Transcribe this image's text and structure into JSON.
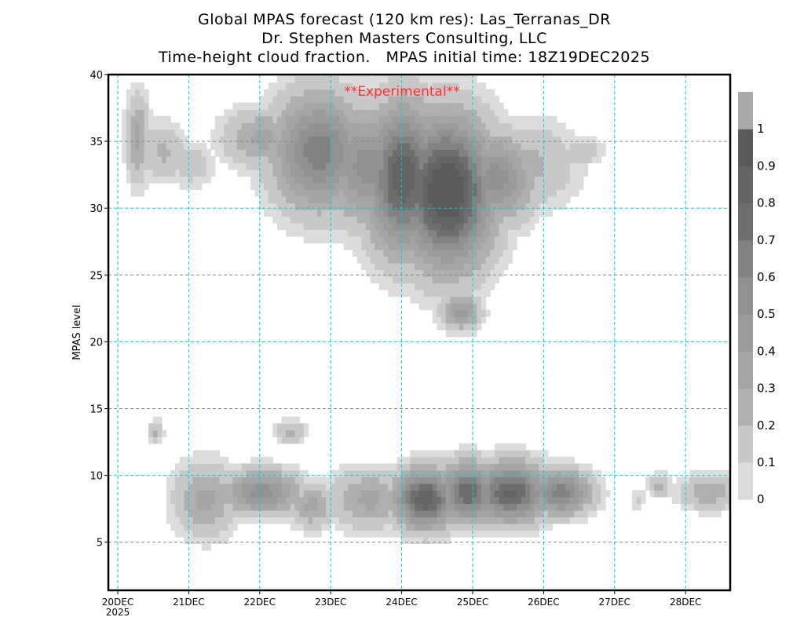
{
  "chart_data": {
    "type": "heatmap",
    "title": [
      "Global MPAS forecast (120 km res): Las_Terranas_DR",
      "Dr. Stephen Masters Consulting, LLC",
      "Time-height cloud fraction.   MPAS initial time: 18Z19DEC2025"
    ],
    "annotation": "**Experimental**",
    "ylabel": "MPAS level",
    "xlabel": "",
    "ylim": [
      1.4,
      40
    ],
    "xlim_days_from_20DEC": [
      -0.13,
      8.63
    ],
    "yticks": [
      5,
      10,
      15,
      20,
      25,
      30,
      35,
      40
    ],
    "xticks": [
      "20DEC",
      "21DEC",
      "22DEC",
      "23DEC",
      "24DEC",
      "25DEC",
      "26DEC",
      "27DEC",
      "28DEC"
    ],
    "xtick_year": "2025",
    "grid": true,
    "colorbar": {
      "levels": [
        0,
        0.1,
        0.2,
        0.3,
        0.4,
        0.5,
        0.6,
        0.7,
        0.8,
        0.9,
        1
      ],
      "labels": [
        "0",
        "0.1",
        "0.2",
        "0.3",
        "0.4",
        "0.5",
        "0.6",
        "0.7",
        "0.8",
        "0.9",
        "1"
      ],
      "colors": [
        "#dcdcdc",
        "#c8c8c8",
        "#afafaf",
        "#a5a5a5",
        "#9b9b9b",
        "#919191",
        "#828282",
        "#6e6e6e",
        "#646464",
        "#5a5a5a",
        "#aaaaaa"
      ]
    },
    "cloud_features": [
      {
        "day": 0.25,
        "level": 35,
        "dday": 0.15,
        "dlev": 3,
        "fraction": 0.3
      },
      {
        "day": 0.6,
        "level": 34,
        "dday": 0.3,
        "dlev": 2,
        "fraction": 0.2
      },
      {
        "day": 1.0,
        "level": 33,
        "dday": 0.3,
        "dlev": 1.5,
        "fraction": 0.15
      },
      {
        "day": 2.0,
        "level": 35,
        "dday": 0.5,
        "dlev": 2,
        "fraction": 0.3
      },
      {
        "day": 2.8,
        "level": 34,
        "dday": 0.6,
        "dlev": 4,
        "fraction": 0.6
      },
      {
        "day": 3.5,
        "level": 33,
        "dday": 0.6,
        "dlev": 4,
        "fraction": 0.5
      },
      {
        "day": 4.0,
        "level": 32,
        "dday": 0.5,
        "dlev": 5,
        "fraction": 0.8
      },
      {
        "day": 4.6,
        "level": 31,
        "dday": 0.6,
        "dlev": 5,
        "fraction": 0.95
      },
      {
        "day": 5.3,
        "level": 32,
        "dday": 0.5,
        "dlev": 3,
        "fraction": 0.5
      },
      {
        "day": 5.8,
        "level": 33,
        "dday": 0.6,
        "dlev": 3,
        "fraction": 0.2
      },
      {
        "day": 6.5,
        "level": 34,
        "dday": 0.3,
        "dlev": 1,
        "fraction": 0.15
      },
      {
        "day": 4.8,
        "level": 22,
        "dday": 0.25,
        "dlev": 1.2,
        "fraction": 0.4
      },
      {
        "day": 0.5,
        "level": 13,
        "dday": 0.1,
        "dlev": 0.8,
        "fraction": 0.2
      },
      {
        "day": 2.4,
        "level": 13,
        "dday": 0.2,
        "dlev": 0.8,
        "fraction": 0.2
      },
      {
        "day": 1.2,
        "level": 8,
        "dday": 0.4,
        "dlev": 2.5,
        "fraction": 0.3
      },
      {
        "day": 2.0,
        "level": 8.5,
        "dday": 0.5,
        "dlev": 1.5,
        "fraction": 0.5
      },
      {
        "day": 2.7,
        "level": 7.5,
        "dday": 0.3,
        "dlev": 1.5,
        "fraction": 0.3
      },
      {
        "day": 3.5,
        "level": 8,
        "dday": 0.5,
        "dlev": 2,
        "fraction": 0.3
      },
      {
        "day": 4.3,
        "level": 8,
        "dday": 0.4,
        "dlev": 2,
        "fraction": 0.8
      },
      {
        "day": 4.9,
        "level": 8.5,
        "dday": 0.4,
        "dlev": 2,
        "fraction": 0.7
      },
      {
        "day": 5.5,
        "level": 8.5,
        "dday": 0.5,
        "dlev": 2,
        "fraction": 0.75
      },
      {
        "day": 6.2,
        "level": 8.5,
        "dday": 0.4,
        "dlev": 1.5,
        "fraction": 0.6
      },
      {
        "day": 7.3,
        "level": 8,
        "dday": 0.1,
        "dlev": 0.8,
        "fraction": 0.1
      },
      {
        "day": 7.6,
        "level": 9,
        "dday": 0.15,
        "dlev": 0.8,
        "fraction": 0.2
      },
      {
        "day": 8.3,
        "level": 8.5,
        "dday": 0.4,
        "dlev": 1.2,
        "fraction": 0.25
      }
    ]
  }
}
